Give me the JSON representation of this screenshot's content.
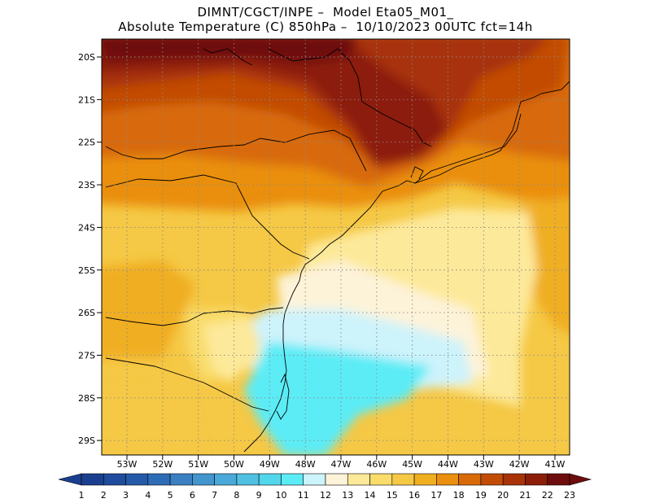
{
  "header": {
    "line1": "DIMNT/CGCT/INPE –  Model Eta05_M01_",
    "line2": "Absolute Temperature (C) 850hPa –  10/10/2023 00UTC fct=14h"
  },
  "map": {
    "lat_labels": [
      "20S",
      "21S",
      "22S",
      "23S",
      "24S",
      "25S",
      "26S",
      "27S",
      "28S",
      "29S"
    ],
    "lon_labels": [
      "53W",
      "52W",
      "51W",
      "50W",
      "49W",
      "48W",
      "47W",
      "46W",
      "45W",
      "44W",
      "43W",
      "42W",
      "41W"
    ],
    "lon_range": [
      -53.5,
      -40.7
    ],
    "lat_range": [
      -29.4,
      -19.8
    ],
    "grid": "dotted"
  },
  "colorbar": {
    "labels": [
      "1",
      "2",
      "3",
      "4",
      "5",
      "6",
      "7",
      "8",
      "9",
      "10",
      "11",
      "12",
      "13",
      "14",
      "15",
      "16",
      "17",
      "18",
      "19",
      "20",
      "21",
      "22",
      "23"
    ],
    "colors": [
      "#1b3f8f",
      "#1f4c9c",
      "#245aa8",
      "#2e6db5",
      "#3a80c2",
      "#4395ce",
      "#4aa9d8",
      "#4fc0e2",
      "#52d6ec",
      "#5cecf6",
      "#cdf3fb",
      "#fdf3d9",
      "#fde99a",
      "#f9dc6a",
      "#f5c845",
      "#f0ae21",
      "#ea8f0e",
      "#d86a08",
      "#c24c06",
      "#a73307",
      "#8c1d07",
      "#6e0d0d"
    ]
  }
}
